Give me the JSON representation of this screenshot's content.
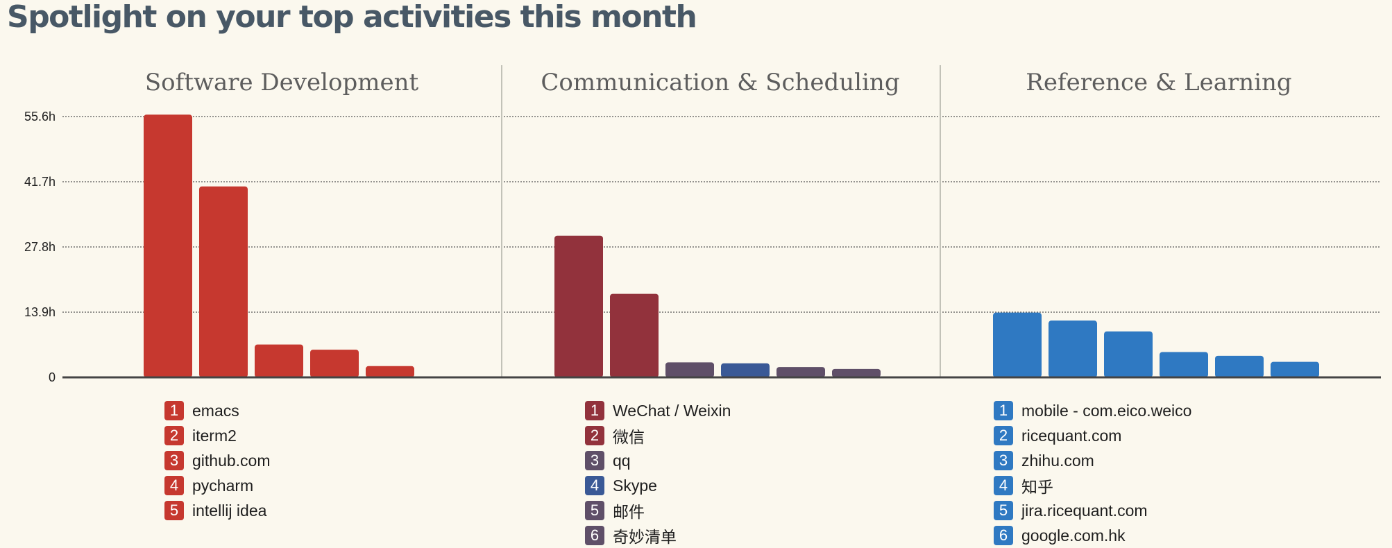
{
  "page": {
    "heading": "Spotlight on your top activities this month"
  },
  "chart_data": {
    "type": "bar",
    "yticks": [
      {
        "value": 0,
        "label": "0"
      },
      {
        "value": 13.9,
        "label": "13.9h"
      },
      {
        "value": 27.8,
        "label": "27.8h"
      },
      {
        "value": 41.7,
        "label": "41.7h"
      },
      {
        "value": 55.6,
        "label": "55.6h"
      }
    ],
    "ylim": [
      0,
      55.6
    ],
    "grid": true,
    "panels": [
      {
        "title": "Software Development",
        "items": [
          {
            "rank": "1",
            "label": "emacs",
            "value": 56.0,
            "color": "#c6382f"
          },
          {
            "rank": "2",
            "label": "iterm2",
            "value": 40.7,
            "color": "#c6382f"
          },
          {
            "rank": "3",
            "label": "github.com",
            "value": 7.0,
            "color": "#c6382f"
          },
          {
            "rank": "4",
            "label": "pycharm",
            "value": 5.9,
            "color": "#c6382f"
          },
          {
            "rank": "5",
            "label": "intellij idea",
            "value": 2.4,
            "color": "#c6382f"
          }
        ]
      },
      {
        "title": "Communication & Scheduling",
        "items": [
          {
            "rank": "1",
            "label": "WeChat / Weixin",
            "value": 30.2,
            "color": "#92323c"
          },
          {
            "rank": "2",
            "label": "微信",
            "value": 17.8,
            "color": "#92323c"
          },
          {
            "rank": "3",
            "label": "qq",
            "value": 3.2,
            "color": "#5f4f68"
          },
          {
            "rank": "4",
            "label": "Skype",
            "value": 3.0,
            "color": "#3a5996"
          },
          {
            "rank": "5",
            "label": "邮件",
            "value": 2.2,
            "color": "#5f4f68"
          },
          {
            "rank": "6",
            "label": "奇妙清单",
            "value": 1.8,
            "color": "#5f4f68"
          }
        ]
      },
      {
        "title": "Reference & Learning",
        "items": [
          {
            "rank": "1",
            "label": "mobile - com.eico.weico",
            "value": 13.8,
            "color": "#2f79c2"
          },
          {
            "rank": "2",
            "label": "ricequant.com",
            "value": 12.1,
            "color": "#2f79c2"
          },
          {
            "rank": "3",
            "label": "zhihu.com",
            "value": 9.8,
            "color": "#2f79c2"
          },
          {
            "rank": "4",
            "label": "知乎",
            "value": 5.4,
            "color": "#2f79c2"
          },
          {
            "rank": "5",
            "label": "jira.ricequant.com",
            "value": 4.6,
            "color": "#2f79c2"
          },
          {
            "rank": "6",
            "label": "google.com.hk",
            "value": 3.3,
            "color": "#2f79c2"
          }
        ]
      }
    ]
  }
}
